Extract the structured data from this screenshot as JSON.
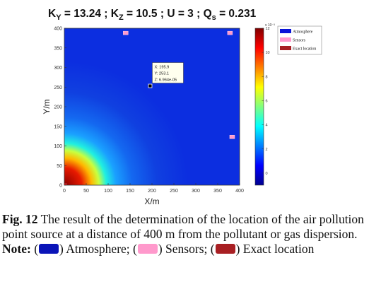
{
  "chart_data": {
    "type": "heatmap",
    "title": {
      "k_sym": "K",
      "ky_sub": "Y",
      "ky_val": " = 13.24  ; ",
      "kz_sub": "Z",
      "kz_val": " = 10.5  ; U = 3 ; ",
      "q_sym": "Q",
      "qs_sub": "s",
      "qs_val": " = 0.231"
    },
    "xlabel": "X/m",
    "ylabel": "Y/m",
    "xlim": [
      0,
      400
    ],
    "ylim": [
      0,
      400
    ],
    "x_ticks": [
      0,
      50,
      100,
      150,
      200,
      250,
      300,
      350,
      400
    ],
    "y_ticks": [
      0,
      50,
      100,
      150,
      200,
      250,
      300,
      350,
      400
    ],
    "colorbar": {
      "range": [
        -1,
        12
      ],
      "ticks": [
        0,
        2,
        4,
        6,
        8,
        10,
        12
      ],
      "exponent_label": "x 10⁻³"
    },
    "sensors": [
      {
        "x": 140,
        "y": 388
      },
      {
        "x": 378,
        "y": 388
      },
      {
        "x": 383,
        "y": 123
      }
    ],
    "exact_location": {
      "x": 0,
      "y": 0
    },
    "datatip": {
      "x": 195.9,
      "y": 253.1,
      "x_text": "X: 195.9",
      "y_text": "Y: 253.1",
      "z_text": "Z: 6.964e-05"
    },
    "legend": {
      "position": "outside-right",
      "entries": [
        {
          "label": "Atmosphere",
          "color": "#0a14d8"
        },
        {
          "label": "Sensors",
          "color": "#ff99cc"
        },
        {
          "label": "Exact location",
          "color": "#a81f23"
        }
      ]
    }
  },
  "caption": {
    "fig_label": "Fig. 12",
    "text": " The result of the determination of the location of the air pollution point source at a distance of 400 m from the pollutant or gas dispersion. ",
    "note_label": "Note:",
    "item1": ") Atmosphere; (",
    "item2": ") Sensors; (",
    "item3": ") Exact location",
    "open_paren": " (",
    "colors": {
      "atmosphere": "#0a14b8",
      "sensors": "#ff99cc",
      "exact": "#a81f23"
    }
  }
}
